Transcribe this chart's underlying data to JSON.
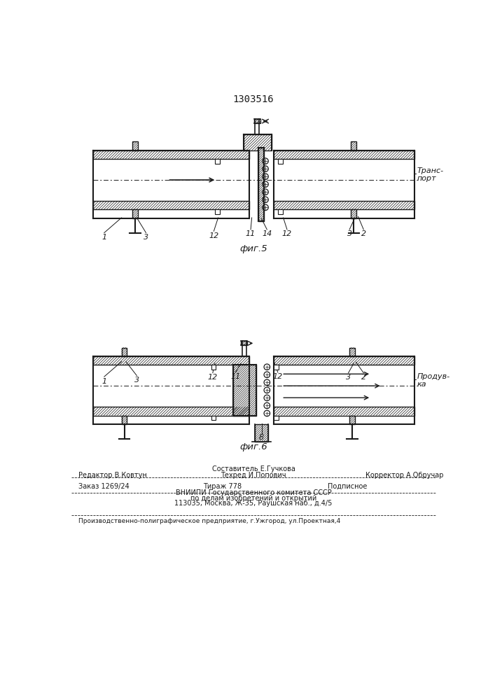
{
  "title": "1303516",
  "fig5_caption": "фиг.5",
  "fig6_caption": "фиг.6",
  "fig5_label_transp": "Транс-\nпорт",
  "fig6_label_produvka": "Продув-\nка",
  "footer_line1_left": "Редактор В.Ковтун",
  "footer_line1_center_top": "Составитель Е.Гучкова",
  "footer_line1_center_bot": "Техред И.Попович",
  "footer_line1_right": "Корректор А.Обручар",
  "footer_line2_col1": "Заказ 1269/24",
  "footer_line2_col2": "Тираж 778",
  "footer_line2_col3": "Подписное",
  "footer_line3": "ВНИИПИ Государственного комитета СССР",
  "footer_line4": "по делам изобретений и открытий",
  "footer_line5": "113035, Москва, Ж-35, Раушская наб., д.4/5",
  "footer_line6": "Производственно-полиграфическое предприятие, г.Ужгород, ул.Проектная,4",
  "line_color": "#1a1a1a"
}
